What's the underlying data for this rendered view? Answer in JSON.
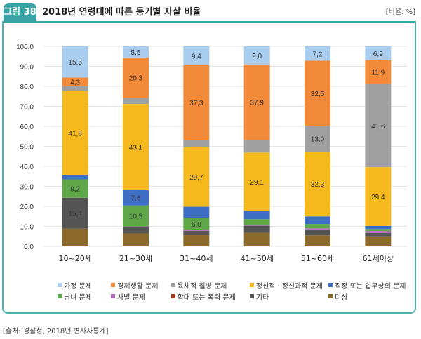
{
  "header": {
    "figure_tag": "그림 38",
    "title": "2018년 연령대에 따른 동기별 자살 비율",
    "unit": "[비율: %]"
  },
  "source": "[출처: 경찰청, 2018년 변사자통계]",
  "chart_data": {
    "type": "bar",
    "stacked": true,
    "title": "2018년 연령대에 따른 동기별 자살 비율",
    "xlabel": "",
    "ylabel": "비율(%)",
    "ylim": [
      0,
      100
    ],
    "yticks": [
      "0,0",
      "10,0",
      "20,0",
      "30,0",
      "40,0",
      "50,0",
      "60,0",
      "70,0",
      "80,0",
      "90,0",
      "100,0"
    ],
    "grid": true,
    "legend_position": "bottom",
    "categories": [
      "10~20세",
      "21~30세",
      "31~40세",
      "41~50세",
      "51~60세",
      "61세이상"
    ],
    "series": [
      {
        "name": "미상",
        "color": "#8c6a2b",
        "values": [
          8.9,
          6.5,
          5.6,
          6.8,
          5.5,
          5.0
        ],
        "labels": [
          null,
          null,
          null,
          null,
          null,
          null
        ]
      },
      {
        "name": "기타",
        "color": "#555555",
        "values": [
          15.4,
          3.0,
          2.2,
          3.5,
          3.0,
          1.7
        ],
        "labels": [
          "15,4",
          null,
          null,
          null,
          null,
          null
        ]
      },
      {
        "name": "학대 또는 폭력 문제",
        "color": "#9e3a1f",
        "values": [
          0.0,
          0.0,
          0.0,
          0.0,
          0.0,
          0.0
        ],
        "labels": [
          null,
          null,
          null,
          null,
          null,
          null
        ]
      },
      {
        "name": "사별 문제",
        "color": "#b36ab8",
        "values": [
          0.0,
          0.5,
          0.5,
          0.5,
          0.5,
          1.0
        ],
        "labels": [
          null,
          null,
          null,
          null,
          null,
          null
        ]
      },
      {
        "name": "남녀 문제",
        "color": "#5fa84a",
        "values": [
          9.2,
          10.5,
          6.0,
          2.8,
          2.2,
          1.0
        ],
        "labels": [
          "9,2",
          "10,5",
          "6,0",
          null,
          null,
          null
        ]
      },
      {
        "name": "직장 또는 업무상의 문제",
        "color": "#3f6fc4",
        "values": [
          2.3,
          7.6,
          5.5,
          4.2,
          3.8,
          1.5
        ],
        "labels": [
          null,
          "7,6",
          null,
          null,
          null,
          null
        ]
      },
      {
        "name": "정신적ㆍ정신과적 문제",
        "color": "#f5b91e",
        "values": [
          41.8,
          43.1,
          29.7,
          29.1,
          32.3,
          29.4
        ],
        "labels": [
          "41,8",
          "43,1",
          "29,7",
          "29,1",
          "32,3",
          "29,4"
        ]
      },
      {
        "name": "육체적 질병 문제",
        "color": "#a0a0a0",
        "values": [
          2.5,
          3.0,
          3.8,
          6.2,
          13.0,
          41.6
        ],
        "labels": [
          null,
          null,
          null,
          null,
          "13,0",
          "41,6"
        ]
      },
      {
        "name": "경제생활 문제",
        "color": "#f28a3a",
        "values": [
          4.3,
          20.3,
          37.3,
          37.9,
          32.5,
          11.9
        ],
        "labels": [
          "4,3",
          "20,3",
          "37,3",
          "37,9",
          "32,5",
          "11,9"
        ]
      },
      {
        "name": "가정 문제",
        "color": "#a8cdef",
        "values": [
          15.6,
          5.5,
          9.4,
          9.0,
          7.2,
          6.9
        ],
        "labels": [
          "15,6",
          "5,5",
          "9,4",
          "9,0",
          "7,2",
          "6,9"
        ]
      }
    ]
  },
  "legend_rows": [
    [
      "가정 문제",
      "경제생활 문제",
      "육체적 질병 문제",
      "정신적ㆍ정신과적 문제",
      "직장 또는 업무상의 문제"
    ],
    [
      "남녀 문제",
      "사별 문제",
      "학대 또는 폭력 문제",
      "기타",
      "미상"
    ]
  ]
}
